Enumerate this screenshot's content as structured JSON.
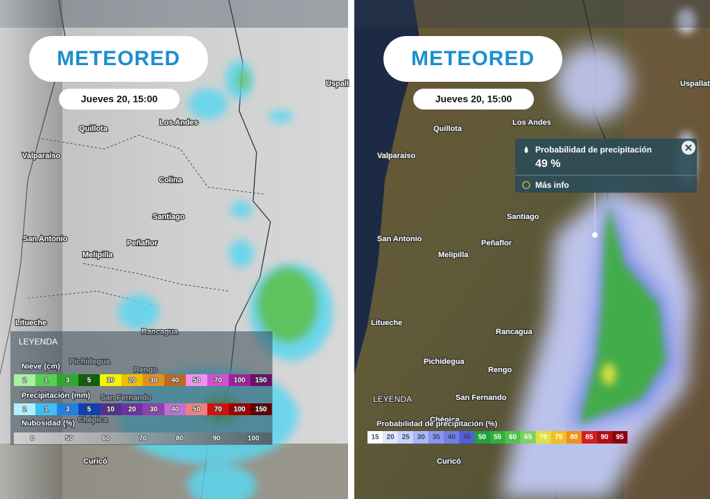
{
  "panels": [
    {
      "logo": "METEORED",
      "date": "Jueves 20, 15:00",
      "places": [
        "Uspall",
        "Quillota",
        "Los Andes",
        "Valparaíso",
        "Colina",
        "Santiago",
        "San Antonio",
        "Peñaflor",
        "Melipilla",
        "Litueche",
        "Rancagua",
        "Pichidegua",
        "Rengo",
        "San Fernando",
        "Chépica",
        "Curicó"
      ],
      "legend": {
        "title": "LEYENDA",
        "scales": [
          {
            "label": "Nieve (cm)",
            "values": [
              "2",
              "1",
              "3",
              "5",
              "10",
              "20",
              "30",
              "40",
              "50",
              "70",
              "100",
              "150"
            ]
          },
          {
            "label": "Precipitación (mm)",
            "values": [
              "2",
              "1",
              "3",
              "5",
              "10",
              "20",
              "30",
              "40",
              "50",
              "70",
              "100",
              "150"
            ]
          },
          {
            "label": "Nubosidad (%)",
            "values": [
              "0",
              "50",
              "60",
              "70",
              "80",
              "90",
              "100"
            ]
          }
        ]
      }
    },
    {
      "logo": "METEORED",
      "date": "Jueves 20, 15:00",
      "places": [
        "Uspallata",
        "Quillota",
        "Los Andes",
        "Valparaíso",
        "Santiago",
        "San Antonio",
        "Peñaflor",
        "Melipilla",
        "Litueche",
        "Rancagua",
        "Pichidegua",
        "Rengo",
        "San Fernando",
        "Chépica",
        "Curicó"
      ],
      "popup": {
        "title": "Probabilidad de precipitación",
        "value": "49 %",
        "link": "Más info"
      },
      "legend": {
        "title": "LEYENDA",
        "scales": [
          {
            "label": "Probabilidad de precipitación (%)",
            "values": [
              "15",
              "20",
              "25",
              "30",
              "35",
              "40",
              "45",
              "50",
              "55",
              "60",
              "65",
              "70",
              "75",
              "80",
              "85",
              "90",
              "95"
            ]
          }
        ]
      }
    }
  ]
}
